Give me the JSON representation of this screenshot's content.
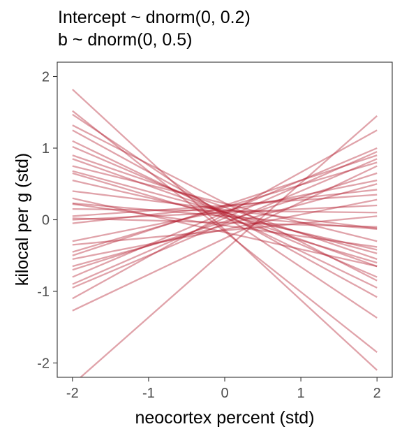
{
  "chart_data": {
    "type": "line",
    "title_lines": [
      "Intercept ~ dnorm(0, 0.2)",
      "b ~ dnorm(0, 0.5)"
    ],
    "xlabel": "neocortex percent (std)",
    "ylabel": "kilocal per g (std)",
    "xlim": [
      -2.2,
      2.2
    ],
    "ylim": [
      -2.2,
      2.2
    ],
    "xticks": [
      -2,
      -1,
      0,
      1,
      2
    ],
    "yticks": [
      -2,
      -1,
      0,
      1,
      2
    ],
    "grid": false,
    "line_color": "#b2182b",
    "line_opacity": 0.4,
    "lines": [
      {
        "y_at_minus2": 1.82,
        "y_at_plus2": -2.1
      },
      {
        "y_at_minus2": 1.52,
        "y_at_plus2": -1.85
      },
      {
        "y_at_minus2": 1.47,
        "y_at_plus2": -1.37
      },
      {
        "y_at_minus2": 1.32,
        "y_at_plus2": -0.85
      },
      {
        "y_at_minus2": 1.25,
        "y_at_plus2": -1.08
      },
      {
        "y_at_minus2": 1.1,
        "y_at_plus2": -0.95
      },
      {
        "y_at_minus2": 1.02,
        "y_at_plus2": -0.8
      },
      {
        "y_at_minus2": 0.9,
        "y_at_plus2": -0.55
      },
      {
        "y_at_minus2": 0.85,
        "y_at_plus2": -0.65
      },
      {
        "y_at_minus2": 0.68,
        "y_at_plus2": -0.47
      },
      {
        "y_at_minus2": 0.65,
        "y_at_plus2": -0.6
      },
      {
        "y_at_minus2": 0.55,
        "y_at_plus2": -0.42
      },
      {
        "y_at_minus2": 0.4,
        "y_at_plus2": -0.12
      },
      {
        "y_at_minus2": 0.23,
        "y_at_plus2": -0.13
      },
      {
        "y_at_minus2": 0.22,
        "y_at_plus2": -0.38
      },
      {
        "y_at_minus2": 0.15,
        "y_at_plus2": 0.1
      },
      {
        "y_at_minus2": 0.05,
        "y_at_plus2": 0.35
      },
      {
        "y_at_minus2": 0.02,
        "y_at_plus2": -0.1
      },
      {
        "y_at_minus2": 0.0,
        "y_at_plus2": 0.2
      },
      {
        "y_at_minus2": -0.05,
        "y_at_plus2": 0.42
      },
      {
        "y_at_minus2": -0.3,
        "y_at_plus2": 0.55
      },
      {
        "y_at_minus2": -0.45,
        "y_at_plus2": 0.8
      },
      {
        "y_at_minus2": -0.5,
        "y_at_plus2": 0.9
      },
      {
        "y_at_minus2": -0.55,
        "y_at_plus2": 0.28
      },
      {
        "y_at_minus2": -0.65,
        "y_at_plus2": 0.5
      },
      {
        "y_at_minus2": -0.7,
        "y_at_plus2": 0.65
      },
      {
        "y_at_minus2": -0.8,
        "y_at_plus2": 1.0
      },
      {
        "y_at_minus2": -0.9,
        "y_at_plus2": 0.95
      },
      {
        "y_at_minus2": -0.95,
        "y_at_plus2": 0.85
      },
      {
        "y_at_minus2": -1.1,
        "y_at_plus2": 1.25
      },
      {
        "y_at_minus2": -1.27,
        "y_at_plus2": 0.75
      },
      {
        "y_at_minus2": -2.3,
        "y_at_plus2": 1.45
      },
      {
        "y_at_minus2": 0.3,
        "y_at_plus2": -0.65
      },
      {
        "y_at_minus2": 0.75,
        "y_at_plus2": -0.3
      },
      {
        "y_at_minus2": -0.35,
        "y_at_plus2": 0.05
      }
    ]
  }
}
